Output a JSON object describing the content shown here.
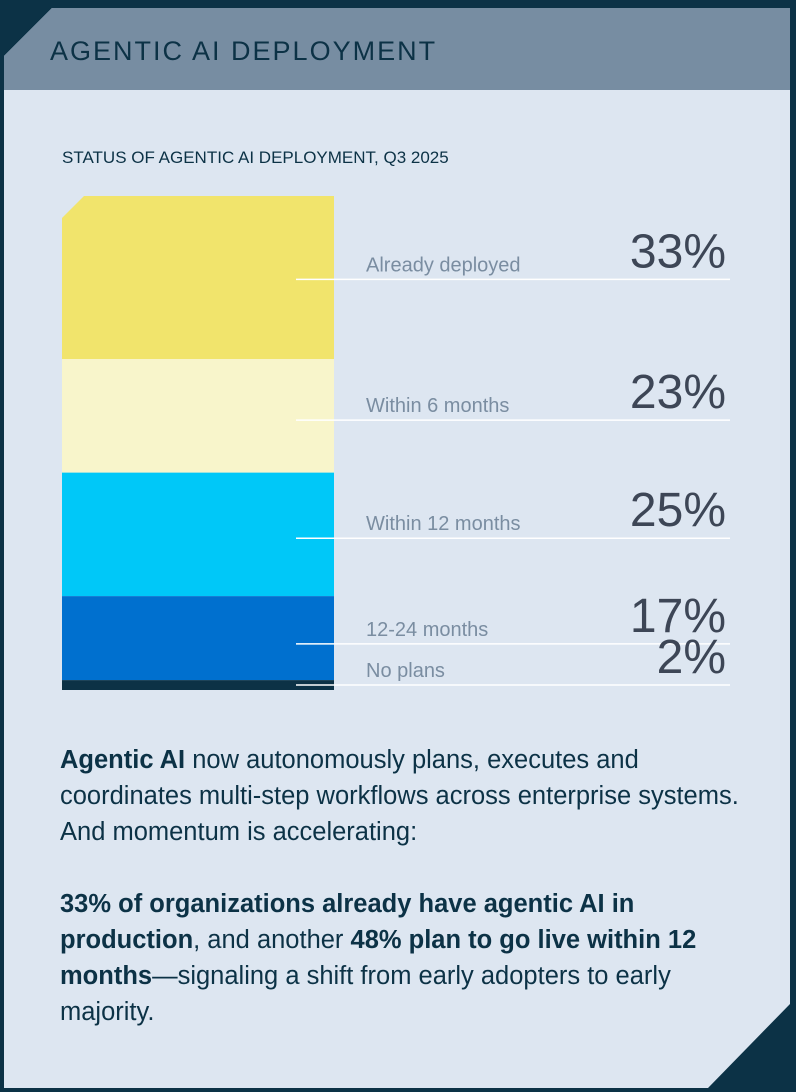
{
  "header": {
    "title": "AGENTIC AI DEPLOYMENT"
  },
  "chart_data": {
    "type": "bar",
    "orientation": "stacked-vertical",
    "title": "STATUS OF AGENTIC AI DEPLOYMENT, Q3 2025",
    "unit": "%",
    "categories": [
      "Already deployed",
      "Within 6 months",
      "Within 12 months",
      "12-24 months",
      "No plans"
    ],
    "values": [
      33,
      23,
      25,
      17,
      2
    ],
    "labels": [
      "33%",
      "23%",
      "25%",
      "17%",
      "2%"
    ],
    "colors": [
      "#f1e46c",
      "#f8f5cb",
      "#00c8f8",
      "#0070cf",
      "#0c3246"
    ],
    "xlabel": "",
    "ylabel": "",
    "ylim": [
      0,
      100
    ]
  },
  "body": {
    "p1_bold": "Agentic AI",
    "p1_rest": " now autonomously plans, executes and coordinates multi-step workflows across enterprise systems. And momentum is accelerating:",
    "p2_bold1": "33% of organizations already have agentic AI in production",
    "p2_text1": ", and another ",
    "p2_bold2": "48% plan to go live within 12 months",
    "p2_text2": "—signaling a shift from early adopters to early majority."
  }
}
